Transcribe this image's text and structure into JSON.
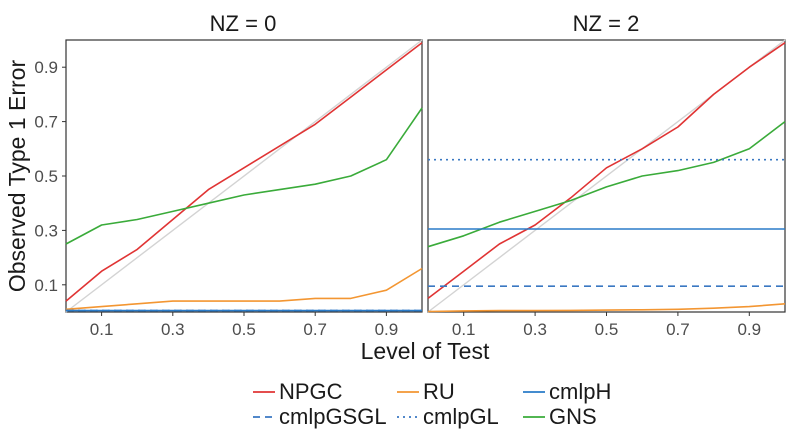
{
  "chart_data": {
    "type": "line",
    "facet_variable": "NZ",
    "xlabel": "Level of Test",
    "ylabel": "Observed Type 1 Error",
    "xlim": [
      0,
      1
    ],
    "ylim": [
      0,
      1
    ],
    "xticks": [
      0.1,
      0.3,
      0.5,
      0.7,
      0.9
    ],
    "yticks": [
      0.1,
      0.3,
      0.5,
      0.7,
      0.9
    ],
    "x_tick_labels": [
      "0.1",
      "0.3",
      "0.5",
      "0.7",
      "0.9"
    ],
    "y_tick_labels": [
      "0.1",
      "0.3",
      "0.5",
      "0.7",
      "0.9"
    ],
    "legend_position": "bottom",
    "colors": {
      "NPGC": "#e03434",
      "cmlpGL": "#3a78c2",
      "cmlpGSGL": "#3a78c2",
      "cmlpH": "#2a7bc8",
      "RU": "#f39632",
      "GNS": "#3aab3a",
      "reference": "#d3d3d3"
    },
    "legend": [
      {
        "name": "NPGC",
        "linetype": "solid"
      },
      {
        "name": "cmlpGSGL",
        "linetype": "dashed"
      },
      {
        "name": "RU",
        "linetype": "solid"
      },
      {
        "name": "cmlpGL",
        "linetype": "dotted"
      },
      {
        "name": "cmlpH",
        "linetype": "solid"
      },
      {
        "name": "GNS",
        "linetype": "solid"
      }
    ],
    "panels": [
      {
        "title": "NZ = 0",
        "x": [
          0.0,
          0.1,
          0.2,
          0.3,
          0.4,
          0.5,
          0.6,
          0.7,
          0.8,
          0.9,
          1.0
        ],
        "series": [
          {
            "name": "NPGC",
            "values": [
              0.04,
              0.15,
              0.23,
              0.34,
              0.45,
              0.53,
              0.61,
              0.69,
              0.79,
              0.89,
              0.99
            ]
          },
          {
            "name": "GNS",
            "values": [
              0.25,
              0.32,
              0.34,
              0.37,
              0.4,
              0.43,
              0.45,
              0.47,
              0.5,
              0.56,
              0.75
            ]
          },
          {
            "name": "RU",
            "values": [
              0.01,
              0.02,
              0.03,
              0.04,
              0.04,
              0.04,
              0.04,
              0.05,
              0.05,
              0.08,
              0.16
            ]
          },
          {
            "name": "cmlpGL",
            "values": [
              0.005,
              0.005,
              0.005,
              0.005,
              0.005,
              0.005,
              0.005,
              0.005,
              0.005,
              0.005,
              0.005
            ]
          },
          {
            "name": "cmlpGSGL",
            "values": [
              0.005,
              0.005,
              0.005,
              0.005,
              0.005,
              0.005,
              0.005,
              0.005,
              0.005,
              0.005,
              0.005
            ]
          },
          {
            "name": "cmlpH",
            "values": [
              0.005,
              0.005,
              0.005,
              0.005,
              0.005,
              0.005,
              0.005,
              0.005,
              0.005,
              0.005,
              0.005
            ]
          }
        ]
      },
      {
        "title": "NZ = 2",
        "x": [
          0.0,
          0.1,
          0.2,
          0.3,
          0.4,
          0.5,
          0.6,
          0.7,
          0.8,
          0.9,
          1.0
        ],
        "series": [
          {
            "name": "NPGC",
            "values": [
              0.05,
              0.15,
              0.25,
              0.32,
              0.42,
              0.53,
              0.6,
              0.68,
              0.8,
              0.9,
              0.99
            ]
          },
          {
            "name": "GNS",
            "values": [
              0.24,
              0.28,
              0.33,
              0.37,
              0.41,
              0.46,
              0.5,
              0.52,
              0.55,
              0.6,
              0.7
            ]
          },
          {
            "name": "RU",
            "values": [
              0.002,
              0.004,
              0.005,
              0.005,
              0.006,
              0.007,
              0.008,
              0.01,
              0.014,
              0.02,
              0.03
            ]
          },
          {
            "name": "cmlpGL",
            "values": [
              0.56,
              0.56,
              0.56,
              0.56,
              0.56,
              0.56,
              0.56,
              0.56,
              0.56,
              0.56,
              0.56
            ]
          },
          {
            "name": "cmlpGSGL",
            "values": [
              0.095,
              0.095,
              0.095,
              0.095,
              0.095,
              0.095,
              0.095,
              0.095,
              0.095,
              0.095,
              0.095
            ]
          },
          {
            "name": "cmlpH",
            "values": [
              0.305,
              0.305,
              0.305,
              0.305,
              0.305,
              0.305,
              0.305,
              0.305,
              0.305,
              0.305,
              0.305
            ]
          }
        ]
      }
    ]
  }
}
